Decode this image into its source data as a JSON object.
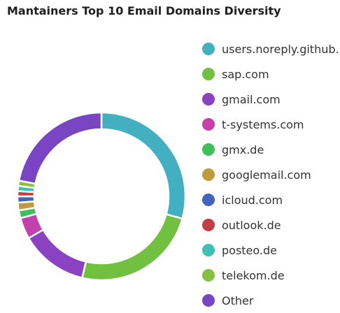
{
  "chart_data": {
    "type": "pie",
    "title": "Mantainers Top 10 Email Domains Diversity",
    "donut": true,
    "legend_position": "right",
    "categories": [
      "users.noreply.github.",
      "sap.com",
      "gmail.com",
      "t-systems.com",
      "gmx.de",
      "googlemail.com",
      "icloud.com",
      "outlook.de",
      "posteo.de",
      "telekom.de",
      "Other"
    ],
    "values": [
      29.3,
      24.4,
      13.0,
      4.1,
      1.5,
      1.5,
      1.2,
      1.0,
      1.0,
      1.0,
      22.0
    ],
    "colors": [
      "#42b0c0",
      "#72c040",
      "#8a42c2",
      "#c241ac",
      "#3ec05c",
      "#c19a3c",
      "#4266bf",
      "#c24045",
      "#40c0b4",
      "#88c042",
      "#7a45c2"
    ]
  }
}
